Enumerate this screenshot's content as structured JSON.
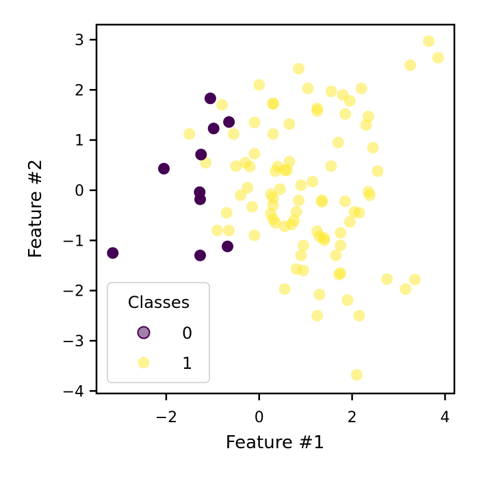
{
  "chart_data": {
    "type": "scatter",
    "title": "",
    "xlabel": "Feature #1",
    "ylabel": "Feature #2",
    "xlim": [
      -3.5,
      4.2
    ],
    "ylim": [
      -4.05,
      3.3
    ],
    "xticks": [
      -2,
      0,
      2,
      4
    ],
    "yticks": [
      3,
      2,
      1,
      0,
      -1,
      -2,
      -3,
      -4
    ],
    "xtick_labels": [
      "−2",
      "0",
      "2",
      "4"
    ],
    "ytick_labels": [
      "3",
      "2",
      "1",
      "0",
      "−1",
      "−2",
      "−3",
      "−4"
    ],
    "grid": false,
    "legend": {
      "title": "Classes",
      "placement": "lower-left"
    },
    "series": [
      {
        "name": "0",
        "color": "#440154",
        "opacity": 1.0,
        "points": [
          [
            -1.05,
            1.83
          ],
          [
            -0.65,
            1.36
          ],
          [
            -0.98,
            1.23
          ],
          [
            -1.25,
            0.71
          ],
          [
            -2.05,
            0.43
          ],
          [
            -1.28,
            -0.04
          ],
          [
            -1.27,
            -0.18
          ],
          [
            -0.68,
            -1.12
          ],
          [
            -1.27,
            -1.3
          ],
          [
            -3.15,
            -1.25
          ]
        ]
      },
      {
        "name": "1",
        "color": "#fde725",
        "opacity": 0.5,
        "points": [
          [
            3.65,
            2.97
          ],
          [
            3.85,
            2.64
          ],
          [
            3.25,
            2.49
          ],
          [
            0.85,
            2.42
          ],
          [
            0.0,
            2.1
          ],
          [
            1.05,
            2.03
          ],
          [
            2.2,
            2.03
          ],
          [
            1.55,
            1.97
          ],
          [
            1.25,
            1.63
          ],
          [
            1.25,
            1.58
          ],
          [
            1.8,
            1.9
          ],
          [
            1.95,
            1.78
          ],
          [
            0.3,
            1.73
          ],
          [
            0.3,
            1.72
          ],
          [
            -0.8,
            1.7
          ],
          [
            1.85,
            1.52
          ],
          [
            2.35,
            1.47
          ],
          [
            -0.1,
            1.35
          ],
          [
            0.65,
            1.32
          ],
          [
            2.3,
            1.3
          ],
          [
            -1.5,
            1.12
          ],
          [
            0.3,
            1.12
          ],
          [
            -0.55,
            1.12
          ],
          [
            1.7,
            0.95
          ],
          [
            2.45,
            0.85
          ],
          [
            -0.1,
            0.73
          ],
          [
            -1.15,
            0.55
          ],
          [
            0.65,
            0.57
          ],
          [
            -0.3,
            0.55
          ],
          [
            0.4,
            0.47
          ],
          [
            0.6,
            0.4
          ],
          [
            -0.5,
            0.48
          ],
          [
            -0.2,
            0.47
          ],
          [
            0.55,
            0.4
          ],
          [
            0.35,
            0.38
          ],
          [
            1.55,
            0.48
          ],
          [
            2.55,
            0.38
          ],
          [
            1.15,
            0.17
          ],
          [
            0.9,
            0.1
          ],
          [
            -0.25,
            0.05
          ],
          [
            0.45,
            0.02
          ],
          [
            2.35,
            -0.03
          ],
          [
            2.38,
            -0.1
          ],
          [
            -0.4,
            -0.1
          ],
          [
            0.25,
            -0.08
          ],
          [
            0.3,
            -0.15
          ],
          [
            0.85,
            -0.2
          ],
          [
            1.35,
            -0.2
          ],
          [
            1.35,
            -0.23
          ],
          [
            1.85,
            -0.22
          ],
          [
            -0.15,
            -0.33
          ],
          [
            0.3,
            -0.3
          ],
          [
            2.05,
            -0.43
          ],
          [
            0.8,
            -0.43
          ],
          [
            -0.7,
            -0.45
          ],
          [
            2.15,
            -0.45
          ],
          [
            0.25,
            -0.47
          ],
          [
            0.3,
            -0.58
          ],
          [
            0.75,
            -0.6
          ],
          [
            0.35,
            -0.65
          ],
          [
            0.7,
            -0.68
          ],
          [
            0.55,
            -0.72
          ],
          [
            1.95,
            -0.63
          ],
          [
            -0.9,
            -0.8
          ],
          [
            -0.65,
            -0.8
          ],
          [
            1.25,
            -0.82
          ],
          [
            1.3,
            -0.92
          ],
          [
            1.4,
            -0.95
          ],
          [
            1.75,
            -0.85
          ],
          [
            -0.1,
            -0.9
          ],
          [
            0.95,
            -1.1
          ],
          [
            1.75,
            -1.1
          ],
          [
            1.4,
            -1.0
          ],
          [
            0.9,
            -1.3
          ],
          [
            1.65,
            -1.3
          ],
          [
            0.8,
            -1.57
          ],
          [
            0.95,
            -1.6
          ],
          [
            1.75,
            -1.65
          ],
          [
            1.72,
            -1.68
          ],
          [
            2.75,
            -1.77
          ],
          [
            3.35,
            -1.78
          ],
          [
            3.15,
            -1.97
          ],
          [
            0.55,
            -1.97
          ],
          [
            1.3,
            -2.08
          ],
          [
            1.9,
            -2.19
          ],
          [
            1.25,
            -2.5
          ],
          [
            2.15,
            -2.5
          ],
          [
            2.1,
            -3.68
          ]
        ]
      }
    ]
  }
}
